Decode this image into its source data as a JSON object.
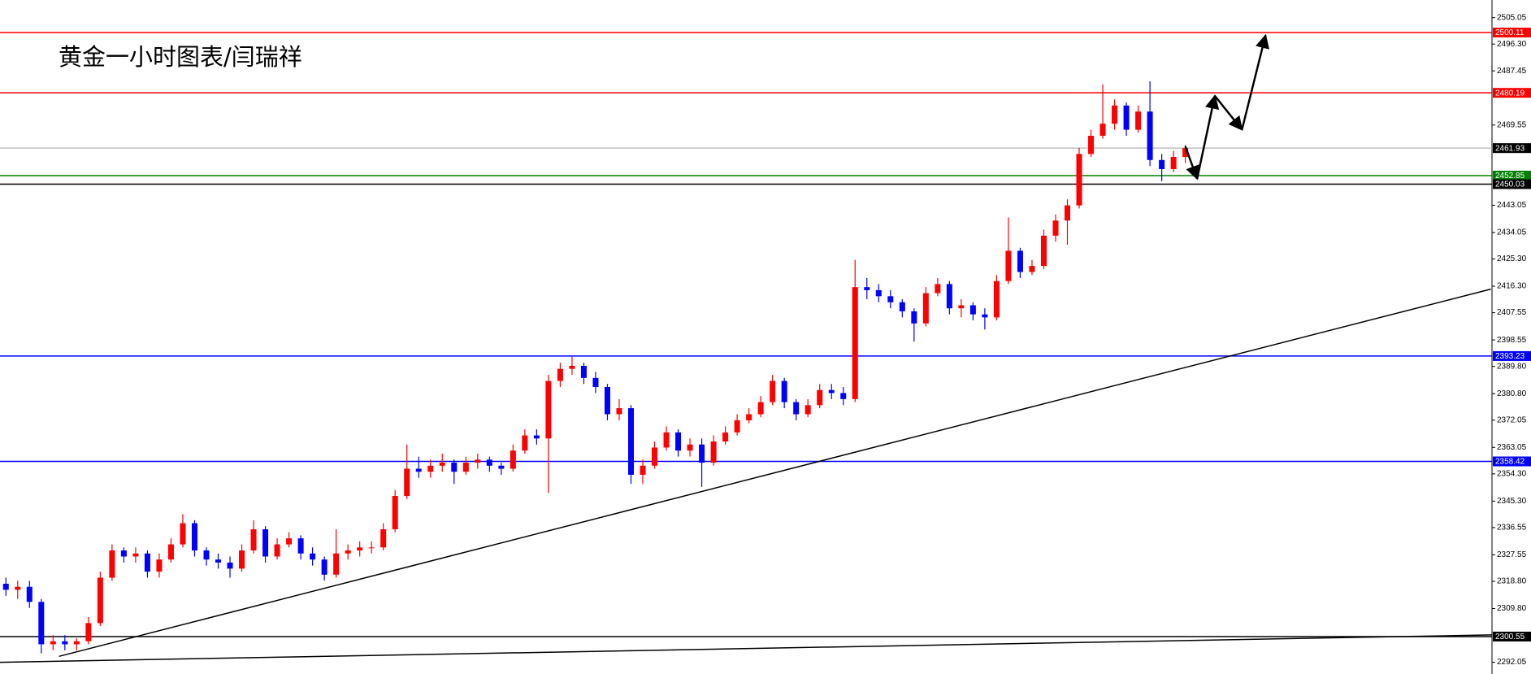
{
  "chart_data": {
    "type": "candlestick",
    "title": "黄金一小时图表/闫瑞祥",
    "up_color": "#ff0000",
    "down_color": "#0000ff",
    "xlim": [
      -0.5,
      126
    ],
    "ylim": [
      2288.18,
      2510.86
    ],
    "yticks": [
      2505.05,
      {
        "value": 2496.3,
        "label": "2496.30"
      },
      2487.45,
      2469.55,
      2443.05,
      2434.05,
      {
        "value": 2425.3,
        "label": "2425.30"
      },
      {
        "value": 2416.3,
        "label": "2416.30"
      },
      2407.55,
      2398.55,
      {
        "value": 2389.8,
        "label": "2389.80"
      },
      {
        "value": 2380.8,
        "label": "2380.80"
      },
      2372.05,
      2363.05,
      {
        "value": 2354.3,
        "label": "2354.30"
      },
      {
        "value": 2345.3,
        "label": "2345.30"
      },
      2336.55,
      2327.55,
      {
        "value": 2318.8,
        "label": "2318.80"
      },
      {
        "value": 2309.8,
        "label": "2309.80"
      },
      2292.05
    ],
    "candles": {
      "open": [
        2318,
        2316,
        2317,
        2312,
        2298,
        2299,
        2298,
        2299,
        2305,
        2320,
        2329,
        2327,
        2328,
        2322,
        2326,
        2331,
        2338,
        2329,
        2326,
        2325,
        2323,
        2329,
        2336,
        2327,
        2331,
        2333,
        2328,
        2326,
        2321,
        2328,
        2329,
        2330,
        2330,
        2336,
        2347,
        2356,
        2355,
        2357,
        2358,
        2355,
        2358,
        2359,
        2357,
        2356,
        2362,
        2367,
        2366,
        2385,
        2389,
        2390,
        2386,
        2383,
        2374,
        2376,
        2354,
        2357,
        2363,
        2368,
        2362,
        2364,
        2358,
        2365,
        2368,
        2372,
        2374,
        2378,
        2385,
        2378,
        2374,
        2377,
        2382,
        2381,
        2379,
        2416,
        2415,
        2413,
        2411,
        2408,
        2404,
        2414,
        2417,
        2409,
        2410,
        2407,
        2406,
        2418,
        2428,
        2421,
        2423,
        2433,
        2438,
        2443,
        2460,
        2466,
        2470,
        2476,
        2468,
        2474,
        2458,
        2455,
        2459
      ],
      "high": [
        2320,
        2319,
        2319,
        2313,
        2301,
        2301,
        2300,
        2307,
        2322,
        2331,
        2330,
        2330,
        2329,
        2328,
        2333,
        2341,
        2339,
        2330,
        2328,
        2327,
        2331,
        2339,
        2337,
        2333,
        2335,
        2334,
        2330,
        2327,
        2336,
        2331,
        2332,
        2332,
        2338,
        2349,
        2364,
        2360,
        2359,
        2361,
        2359,
        2360,
        2361,
        2360,
        2358,
        2364,
        2369,
        2369,
        2387,
        2391,
        2393,
        2391,
        2388,
        2384,
        2379,
        2377,
        2359,
        2365,
        2370,
        2369,
        2366,
        2366,
        2367,
        2370,
        2374,
        2376,
        2380,
        2387,
        2386,
        2379,
        2379,
        2384,
        2384,
        2383,
        2425,
        2419,
        2417,
        2415,
        2412,
        2409,
        2416,
        2419,
        2418,
        2412,
        2411,
        2409,
        2420,
        2439,
        2429,
        2425,
        2435,
        2440,
        2445,
        2462,
        2468,
        2483,
        2478,
        2477,
        2476,
        2484,
        2460,
        2461,
        2463
      ],
      "low": [
        2314,
        2313,
        2310,
        2295,
        2296,
        2296,
        2296,
        2298,
        2304,
        2319,
        2325,
        2325,
        2320,
        2320,
        2325,
        2330,
        2327,
        2324,
        2323,
        2320,
        2322,
        2328,
        2325,
        2326,
        2330,
        2326,
        2324,
        2319,
        2320,
        2326,
        2327,
        2328,
        2329,
        2335,
        2346,
        2353,
        2353,
        2355,
        2351,
        2354,
        2356,
        2355,
        2354,
        2355,
        2361,
        2364,
        2348,
        2383,
        2387,
        2384,
        2381,
        2372,
        2372,
        2351,
        2351,
        2356,
        2362,
        2360,
        2360,
        2350,
        2357,
        2364,
        2367,
        2371,
        2373,
        2377,
        2376,
        2372,
        2373,
        2376,
        2379,
        2377,
        2378,
        2412,
        2411,
        2409,
        2406,
        2398,
        2403,
        2413,
        2407,
        2406,
        2405,
        2402,
        2405,
        2417,
        2419,
        2420,
        2422,
        2431,
        2430,
        2442,
        2459,
        2465,
        2468,
        2466,
        2467,
        2456,
        2451,
        2454,
        2457
      ],
      "close": [
        2316,
        2317,
        2312,
        2298,
        2299,
        2298,
        2299,
        2305,
        2320,
        2329,
        2327,
        2328,
        2322,
        2326,
        2331,
        2338,
        2329,
        2326,
        2325,
        2323,
        2329,
        2336,
        2327,
        2331,
        2333,
        2328,
        2326,
        2321,
        2328,
        2329,
        2330,
        2330,
        2336,
        2347,
        2356,
        2355,
        2357,
        2358,
        2355,
        2358,
        2359,
        2357,
        2356,
        2362,
        2367,
        2366,
        2385,
        2389,
        2390,
        2386,
        2383,
        2374,
        2376,
        2354,
        2357,
        2363,
        2368,
        2362,
        2364,
        2358,
        2365,
        2368,
        2372,
        2374,
        2378,
        2385,
        2378,
        2374,
        2377,
        2382,
        2381,
        2379,
        2416,
        2415,
        2413,
        2411,
        2408,
        2404,
        2414,
        2417,
        2409,
        2410,
        2407,
        2406,
        2418,
        2428,
        2421,
        2423,
        2433,
        2438,
        2443,
        2460,
        2466,
        2470,
        2476,
        2468,
        2474,
        2458,
        2455,
        2459,
        2461.93
      ]
    },
    "levels": [
      {
        "value": 2500.11,
        "color": "#ff0000"
      },
      {
        "value": 2480.19,
        "color": "#ff0000"
      },
      {
        "value": 2461.93,
        "color": "#c0c0c0"
      },
      {
        "value": 2452.85,
        "color": "#008000"
      },
      {
        "value": 2450.03,
        "color": "#000000"
      },
      {
        "value": 2393.23,
        "color": "#0000ff"
      },
      {
        "value": 2358.42,
        "color": "#0000ff"
      },
      {
        "value": 2300.55,
        "color": "#000000"
      }
    ],
    "trendlines": [
      {
        "x": [
          4.5,
          125.9
        ],
        "y": [
          2294,
          2415.34
        ]
      },
      {
        "x": [
          -0.5,
          126
        ],
        "y": [
          2292.05,
          2301.1
        ]
      }
    ],
    "forecast": {
      "x": [
        100,
        101,
        102.5,
        104.8,
        106.8
      ],
      "y": [
        2462.5,
        2451.8,
        2479.2,
        2468,
        2499.2
      ]
    }
  }
}
